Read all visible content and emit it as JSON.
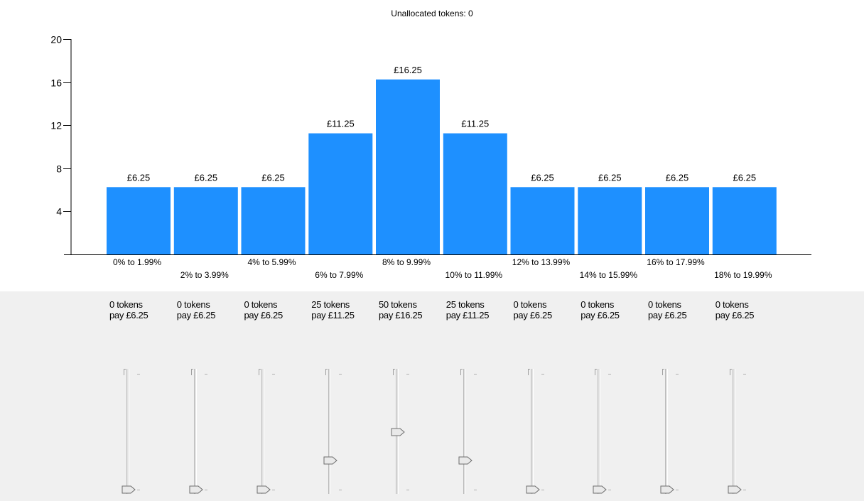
{
  "header": {
    "unallocated_label": "Unallocated tokens: 0"
  },
  "chart_data": {
    "type": "bar",
    "categories": [
      "0% to 1.99%",
      "2% to 3.99%",
      "4% to 5.99%",
      "6% to 7.99%",
      "8% to 9.99%",
      "10% to 11.99%",
      "12% to 13.99%",
      "14% to 15.99%",
      "16% to 17.99%",
      "18% to 19.99%"
    ],
    "values": [
      6.25,
      6.25,
      6.25,
      11.25,
      16.25,
      11.25,
      6.25,
      6.25,
      6.25,
      6.25
    ],
    "data_labels": [
      "£6.25",
      "£6.25",
      "£6.25",
      "£11.25",
      "£16.25",
      "£11.25",
      "£6.25",
      "£6.25",
      "£6.25",
      "£6.25"
    ],
    "yticks": [
      4,
      8,
      12,
      16,
      20
    ],
    "ylim": [
      0,
      20
    ],
    "bar_color": "#1e90ff"
  },
  "allocations": [
    {
      "tokens": "0 tokens",
      "pay": "pay £6.25",
      "level": 0
    },
    {
      "tokens": "0 tokens",
      "pay": "pay £6.25",
      "level": 0
    },
    {
      "tokens": "0 tokens",
      "pay": "pay £6.25",
      "level": 0
    },
    {
      "tokens": "25 tokens",
      "pay": "pay £11.25",
      "level": 25
    },
    {
      "tokens": "50 tokens",
      "pay": "pay £16.25",
      "level": 50
    },
    {
      "tokens": "25 tokens",
      "pay": "pay £11.25",
      "level": 25
    },
    {
      "tokens": "0 tokens",
      "pay": "pay £6.25",
      "level": 0
    },
    {
      "tokens": "0 tokens",
      "pay": "pay £6.25",
      "level": 0
    },
    {
      "tokens": "0 tokens",
      "pay": "pay £6.25",
      "level": 0
    },
    {
      "tokens": "0 tokens",
      "pay": "pay £6.25",
      "level": 0
    }
  ],
  "slider_max": 100
}
